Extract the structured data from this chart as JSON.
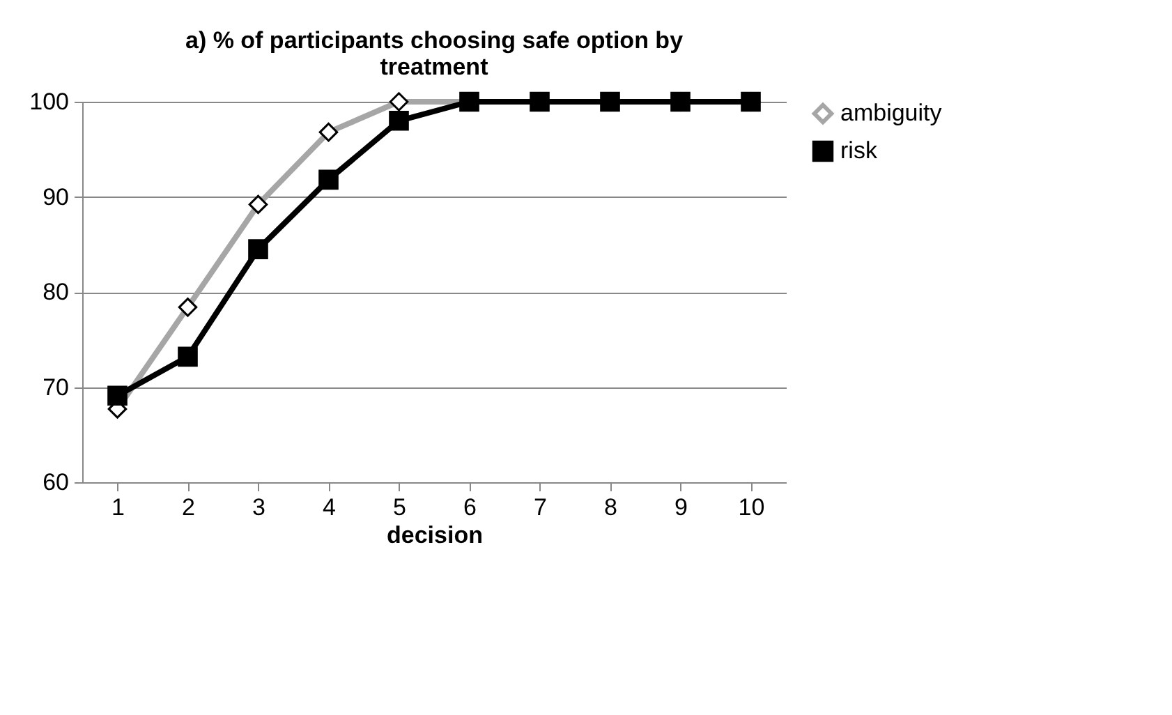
{
  "chart_data": {
    "type": "line",
    "title": "a) % of participants choosing safe option by treatment",
    "xlabel": "decision",
    "categories": [
      "1",
      "2",
      "3",
      "4",
      "5",
      "6",
      "7",
      "8",
      "9",
      "10"
    ],
    "series": [
      {
        "name": "ambiguity",
        "color": "#a6a6a6",
        "marker": "diamond",
        "values": [
          67.7,
          78.4,
          89.2,
          96.8,
          100,
          100,
          100,
          100,
          100,
          100
        ]
      },
      {
        "name": "risk",
        "color": "#000000",
        "marker": "square",
        "values": [
          69.1,
          73.2,
          84.5,
          91.8,
          98,
          100,
          100,
          100,
          100,
          100
        ]
      }
    ],
    "ylim": [
      60,
      100
    ],
    "yticks": [
      60,
      70,
      80,
      90,
      100
    ],
    "grid": "y",
    "legend": "right",
    "line_style": "solid"
  }
}
